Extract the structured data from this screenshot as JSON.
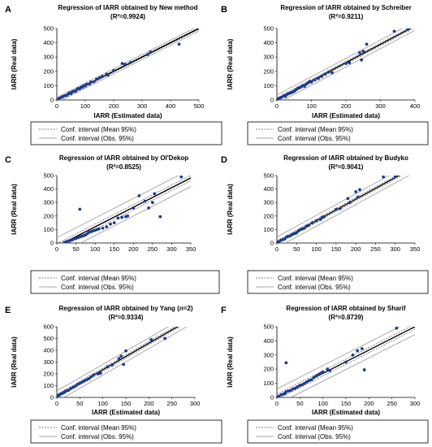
{
  "figure": {
    "colors": {
      "points": "#1f3a93",
      "regression": "#000000",
      "mean_band": "#555555",
      "obs_band": "#8a8a8a"
    }
  },
  "chart_data": [
    {
      "panel": "A",
      "type": "scatter",
      "title": "Regression of IARR obtained  by New method",
      "r2": "(R²=0.9924)",
      "xlabel": "IARR (Estimated data)",
      "ylabel": "IARR (Real data)",
      "xlim": [
        0,
        500
      ],
      "ylim": [
        0,
        500
      ],
      "xticks": [
        0,
        100,
        200,
        300,
        400,
        500
      ],
      "yticks": [
        0,
        100,
        200,
        300,
        400,
        500
      ],
      "regression": {
        "slope": 1.0,
        "intercept": 0,
        "mean_band": 6,
        "obs_band": 18
      },
      "legend": [
        "Conf. interval (Mean 95%)",
        "Conf. interval (Obs. 95%)"
      ],
      "points": [
        [
          5,
          8
        ],
        [
          12,
          15
        ],
        [
          18,
          20
        ],
        [
          22,
          25
        ],
        [
          28,
          30
        ],
        [
          35,
          33
        ],
        [
          40,
          42
        ],
        [
          45,
          50
        ],
        [
          50,
          45
        ],
        [
          55,
          58
        ],
        [
          60,
          62
        ],
        [
          65,
          60
        ],
        [
          70,
          72
        ],
        [
          75,
          80
        ],
        [
          80,
          78
        ],
        [
          85,
          90
        ],
        [
          90,
          88
        ],
        [
          95,
          100
        ],
        [
          100,
          98
        ],
        [
          105,
          110
        ],
        [
          115,
          112
        ],
        [
          120,
          125
        ],
        [
          130,
          128
        ],
        [
          140,
          145
        ],
        [
          150,
          155
        ],
        [
          160,
          165
        ],
        [
          175,
          180
        ],
        [
          180,
          175
        ],
        [
          200,
          205
        ],
        [
          230,
          255
        ],
        [
          240,
          250
        ],
        [
          260,
          262
        ],
        [
          320,
          318
        ],
        [
          330,
          335
        ],
        [
          430,
          390
        ],
        [
          500,
          500
        ]
      ]
    },
    {
      "panel": "B",
      "type": "scatter",
      "title": "Regression of  IARR obtained by Schreiber",
      "r2": "(R²=0.9211)",
      "xlabel": "IARR (Estimated data)",
      "ylabel": "IARR (Real data)",
      "xlim": [
        0,
        400
      ],
      "ylim": [
        0,
        500
      ],
      "xticks": [
        0,
        100,
        200,
        300,
        400
      ],
      "yticks": [
        0,
        100,
        200,
        300,
        400,
        500
      ],
      "regression": {
        "slope": 1.28,
        "intercept": 5,
        "mean_band": 10,
        "obs_band": 30
      },
      "legend": [
        "Conf. interval (Mean 95%)",
        "Conf. interval (Obs. 95%)"
      ],
      "points": [
        [
          5,
          10
        ],
        [
          10,
          15
        ],
        [
          15,
          20
        ],
        [
          20,
          30
        ],
        [
          25,
          25
        ],
        [
          30,
          40
        ],
        [
          35,
          45
        ],
        [
          40,
          50
        ],
        [
          45,
          55
        ],
        [
          50,
          60
        ],
        [
          55,
          70
        ],
        [
          60,
          80
        ],
        [
          65,
          85
        ],
        [
          70,
          90
        ],
        [
          75,
          100
        ],
        [
          80,
          95
        ],
        [
          85,
          110
        ],
        [
          90,
          120
        ],
        [
          95,
          130
        ],
        [
          100,
          125
        ],
        [
          110,
          140
        ],
        [
          120,
          150
        ],
        [
          130,
          165
        ],
        [
          140,
          180
        ],
        [
          150,
          195
        ],
        [
          160,
          190
        ],
        [
          200,
          255
        ],
        [
          210,
          260
        ],
        [
          240,
          330
        ],
        [
          250,
          340
        ],
        [
          245,
          280
        ],
        [
          260,
          390
        ],
        [
          340,
          480
        ],
        [
          380,
          495
        ]
      ]
    },
    {
      "panel": "C",
      "type": "scatter",
      "title": "Regression of IARR obtained  by Ol'Dekop",
      "r2": "(R²=0.8525)",
      "xlabel": "",
      "ylabel": "IARR (Real data)",
      "xlim": [
        0,
        350
      ],
      "ylim": [
        0,
        500
      ],
      "xticks": [
        0,
        50,
        100,
        150,
        200,
        250,
        300,
        350
      ],
      "yticks": [
        0,
        100,
        200,
        300,
        400,
        500
      ],
      "regression": {
        "slope": 1.45,
        "intercept": -25,
        "mean_band": 20,
        "obs_band": 65
      },
      "legend": [
        "Conf. interval (Mean 95%)",
        "Conf. interval (Obs. 95%)"
      ],
      "points": [
        [
          20,
          5
        ],
        [
          25,
          10
        ],
        [
          30,
          15
        ],
        [
          35,
          20
        ],
        [
          40,
          25
        ],
        [
          45,
          30
        ],
        [
          50,
          35
        ],
        [
          55,
          40
        ],
        [
          60,
          45
        ],
        [
          65,
          50
        ],
        [
          70,
          55
        ],
        [
          75,
          60
        ],
        [
          80,
          70
        ],
        [
          85,
          80
        ],
        [
          90,
          85
        ],
        [
          95,
          90
        ],
        [
          100,
          95
        ],
        [
          105,
          100
        ],
        [
          110,
          105
        ],
        [
          120,
          110
        ],
        [
          130,
          120
        ],
        [
          140,
          140
        ],
        [
          150,
          150
        ],
        [
          160,
          185
        ],
        [
          170,
          190
        ],
        [
          180,
          195
        ],
        [
          185,
          200
        ],
        [
          60,
          250
        ],
        [
          200,
          260
        ],
        [
          215,
          350
        ],
        [
          230,
          310
        ],
        [
          240,
          260
        ],
        [
          250,
          300
        ],
        [
          255,
          365
        ],
        [
          270,
          195
        ],
        [
          325,
          490
        ]
      ]
    },
    {
      "panel": "D",
      "type": "scatter",
      "title": "Regression of IARR obtained by Budyko",
      "r2": "(R²=0.9041)",
      "xlabel": "",
      "ylabel": "IARR (Real data)",
      "xlim": [
        0,
        350
      ],
      "ylim": [
        0,
        500
      ],
      "xticks": [
        0,
        50,
        100,
        150,
        200,
        250,
        300,
        350
      ],
      "yticks": [
        0,
        100,
        200,
        300,
        400,
        500
      ],
      "regression": {
        "slope": 1.6,
        "intercept": 5,
        "mean_band": 12,
        "obs_band": 40
      },
      "legend": [
        "Conf. interval (Mean 95%)",
        "Conf. interval (Obs. 95%)"
      ],
      "points": [
        [
          5,
          10
        ],
        [
          10,
          20
        ],
        [
          15,
          25
        ],
        [
          20,
          30
        ],
        [
          25,
          45
        ],
        [
          30,
          50
        ],
        [
          35,
          55
        ],
        [
          40,
          65
        ],
        [
          45,
          70
        ],
        [
          50,
          75
        ],
        [
          55,
          90
        ],
        [
          60,
          100
        ],
        [
          65,
          105
        ],
        [
          70,
          110
        ],
        [
          75,
          125
        ],
        [
          80,
          130
        ],
        [
          90,
          150
        ],
        [
          100,
          165
        ],
        [
          110,
          175
        ],
        [
          115,
          190
        ],
        [
          120,
          195
        ],
        [
          150,
          250
        ],
        [
          160,
          255
        ],
        [
          180,
          330
        ],
        [
          185,
          300
        ],
        [
          200,
          380
        ],
        [
          210,
          395
        ],
        [
          205,
          340
        ],
        [
          270,
          490
        ],
        [
          300,
          495
        ]
      ]
    },
    {
      "panel": "E",
      "type": "scatter",
      "title": "Regression of IARR obtained by Yang (n=2)",
      "r2": "(R²=0.9334)",
      "xlabel": "IARR (Estimated data)",
      "ylabel": "IARR (Real data)",
      "xlim": [
        0,
        300
      ],
      "ylim": [
        0,
        600
      ],
      "xticks": [
        0,
        50,
        100,
        150,
        200,
        250,
        300
      ],
      "yticks": [
        0,
        100,
        200,
        300,
        400,
        500,
        600
      ],
      "regression": {
        "slope": 2.25,
        "intercept": 10,
        "mean_band": 14,
        "obs_band": 45
      },
      "legend": [
        "Conf. interval (Mean 95%)",
        "Conf. interval (Obs. 95%)"
      ],
      "points": [
        [
          3,
          15
        ],
        [
          6,
          25
        ],
        [
          9,
          30
        ],
        [
          12,
          35
        ],
        [
          15,
          40
        ],
        [
          18,
          50
        ],
        [
          20,
          55
        ],
        [
          25,
          60
        ],
        [
          30,
          75
        ],
        [
          35,
          85
        ],
        [
          40,
          95
        ],
        [
          45,
          110
        ],
        [
          50,
          120
        ],
        [
          55,
          130
        ],
        [
          60,
          140
        ],
        [
          65,
          150
        ],
        [
          70,
          160
        ],
        [
          75,
          175
        ],
        [
          80,
          190
        ],
        [
          90,
          200
        ],
        [
          95,
          205
        ],
        [
          110,
          260
        ],
        [
          120,
          275
        ],
        [
          135,
          330
        ],
        [
          140,
          350
        ],
        [
          145,
          280
        ],
        [
          150,
          395
        ],
        [
          205,
          490
        ],
        [
          235,
          500
        ]
      ]
    },
    {
      "panel": "F",
      "type": "scatter",
      "title": "Regression of IARR obtained by Sharif",
      "r2": "(R²=0.8739)",
      "xlabel": "IARR (Estimated data)",
      "ylabel": "IARR (Real data)",
      "xlim": [
        0,
        300
      ],
      "ylim": [
        0,
        500
      ],
      "xticks": [
        0,
        50,
        100,
        150,
        200,
        250,
        300
      ],
      "yticks": [
        0,
        100,
        200,
        300,
        400,
        500
      ],
      "regression": {
        "slope": 1.65,
        "intercept": 5,
        "mean_band": 18,
        "obs_band": 55
      },
      "legend": [
        "Conf. interval (Mean 95%)",
        "Conf. interval (Obs. 95%)"
      ],
      "points": [
        [
          5,
          10
        ],
        [
          10,
          20
        ],
        [
          15,
          25
        ],
        [
          18,
          30
        ],
        [
          20,
          40
        ],
        [
          25,
          45
        ],
        [
          30,
          50
        ],
        [
          35,
          60
        ],
        [
          40,
          65
        ],
        [
          45,
          75
        ],
        [
          50,
          85
        ],
        [
          55,
          90
        ],
        [
          60,
          100
        ],
        [
          65,
          110
        ],
        [
          70,
          120
        ],
        [
          75,
          125
        ],
        [
          80,
          140
        ],
        [
          85,
          150
        ],
        [
          90,
          160
        ],
        [
          95,
          170
        ],
        [
          100,
          180
        ],
        [
          110,
          200
        ],
        [
          115,
          190
        ],
        [
          20,
          245
        ],
        [
          150,
          250
        ],
        [
          165,
          300
        ],
        [
          175,
          330
        ],
        [
          185,
          345
        ],
        [
          190,
          195
        ],
        [
          260,
          490
        ],
        [
          300,
          500
        ]
      ]
    }
  ]
}
